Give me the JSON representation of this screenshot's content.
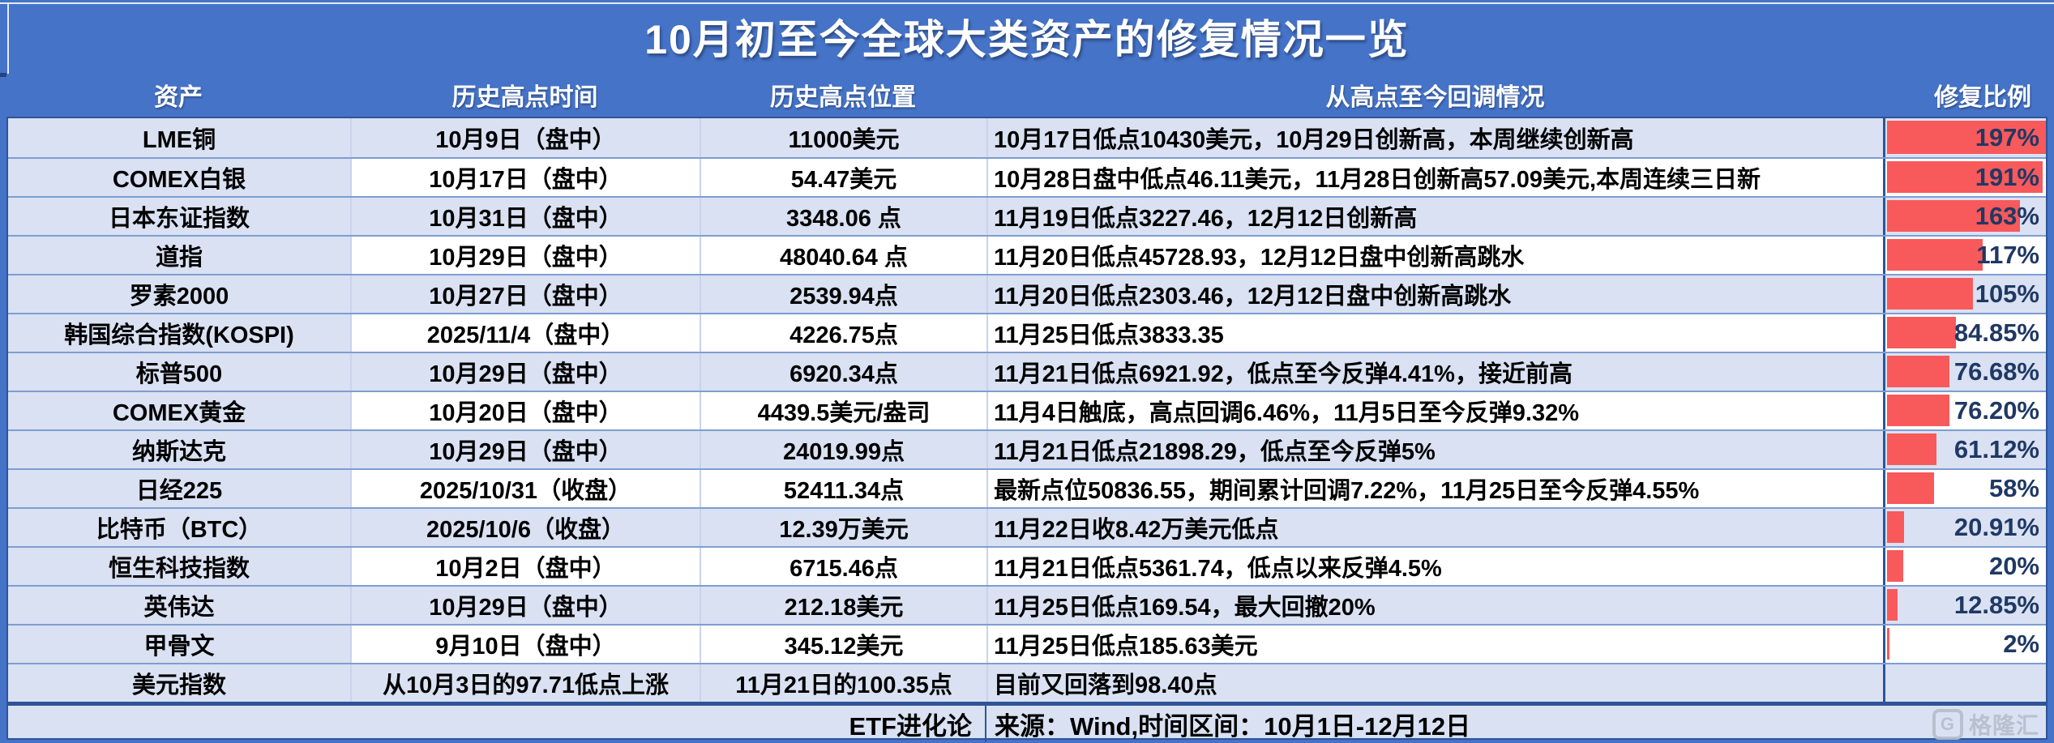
{
  "title": "10月初至今全球大类资产的修复情况一览",
  "table": {
    "headers": [
      "资产",
      "历史高点时间",
      "历史高点位置",
      "从高点至今回调情况",
      "修复比例"
    ],
    "recovery_bar_max": 197,
    "rows": [
      {
        "asset": "LME铜",
        "high_time": "10月9日（盘中）",
        "high_value": "11000美元",
        "pullback": "10月17日低点10430美元，10月29日创新高，本周继续创新高",
        "recovery_label": "197%",
        "recovery_pct": 197
      },
      {
        "asset": "COMEX白银",
        "high_time": "10月17日（盘中）",
        "high_value": "54.47美元",
        "pullback": "10月28日盘中低点46.11美元，11月28日创新高57.09美元,本周连续三日新",
        "recovery_label": "191%",
        "recovery_pct": 191
      },
      {
        "asset": "日本东证指数",
        "high_time": "10月31日（盘中）",
        "high_value": "3348.06 点",
        "pullback": "11月19日低点3227.46，12月12日创新高",
        "recovery_label": "163%",
        "recovery_pct": 163
      },
      {
        "asset": "道指",
        "high_time": "10月29日（盘中）",
        "high_value": "48040.64 点",
        "pullback": "11月20日低点45728.93，12月12日盘中创新高跳水",
        "recovery_label": "117%",
        "recovery_pct": 117
      },
      {
        "asset": "罗素2000",
        "high_time": "10月27日（盘中）",
        "high_value": "2539.94点",
        "pullback": "11月20日低点2303.46，12月12日盘中创新高跳水",
        "recovery_label": "105%",
        "recovery_pct": 105
      },
      {
        "asset": "韩国综合指数(KOSPI)",
        "high_time": "2025/11/4（盘中）",
        "high_value": "4226.75点",
        "pullback": "11月25日低点3833.35",
        "recovery_label": "84.85%",
        "recovery_pct": 84.85
      },
      {
        "asset": "标普500",
        "high_time": "10月29日（盘中）",
        "high_value": "6920.34点",
        "pullback": "11月21日低点6921.92，低点至今反弹4.41%，接近前高",
        "recovery_label": "76.68%",
        "recovery_pct": 76.68
      },
      {
        "asset": "COMEX黄金",
        "high_time": "10月20日（盘中）",
        "high_value": "4439.5美元/盎司",
        "pullback": "11月4日触底，高点回调6.46%，11月5日至今反弹9.32%",
        "recovery_label": "76.20%",
        "recovery_pct": 76.2
      },
      {
        "asset": "纳斯达克",
        "high_time": "10月29日（盘中）",
        "high_value": "24019.99点",
        "pullback": "11月21日低点21898.29，低点至今反弹5%",
        "recovery_label": "61.12%",
        "recovery_pct": 61.12
      },
      {
        "asset": "日经225",
        "high_time": "2025/10/31（收盘）",
        "high_value": "52411.34点",
        "pullback": "最新点位50836.55，期间累计回调7.22%，11月25日至今反弹4.55%",
        "recovery_label": "58%",
        "recovery_pct": 58
      },
      {
        "asset": "比特币（BTC）",
        "high_time": "2025/10/6（收盘）",
        "high_value": "12.39万美元",
        "pullback": "11月22日收8.42万美元低点",
        "recovery_label": "20.91%",
        "recovery_pct": 20.91
      },
      {
        "asset": "恒生科技指数",
        "high_time": "10月2日（盘中）",
        "high_value": "6715.46点",
        "pullback": "11月21日低点5361.74，低点以来反弹4.5%",
        "recovery_label": "20%",
        "recovery_pct": 20
      },
      {
        "asset": "英伟达",
        "high_time": "10月29日（盘中）",
        "high_value": "212.18美元",
        "pullback": "11月25日低点169.54，最大回撤20%",
        "recovery_label": "12.85%",
        "recovery_pct": 12.85
      },
      {
        "asset": "甲骨文",
        "high_time": "9月10日（盘中）",
        "high_value": "345.12美元",
        "pullback": "11月25日低点185.63美元",
        "recovery_label": "2%",
        "recovery_pct": 2
      },
      {
        "asset": "美元指数",
        "high_time": "从10月3日的97.71低点上涨",
        "high_value": "11月21日的100.35点",
        "pullback": "目前又回落到98.40点",
        "recovery_label": "",
        "recovery_pct": null
      }
    ]
  },
  "footer": {
    "brand": "ETF进化论",
    "source": "来源：Wind,时间区间：10月1日-12月12日",
    "watermark": "格隆汇",
    "watermark_icon": "G"
  },
  "colors": {
    "page_blue": "#4573C8",
    "row_band": "#D9E1F2",
    "row_white": "#FFFFFF",
    "bar_red": "#F8595B",
    "ratio_navy": "#1F3864",
    "border_dark": "#2F5597",
    "border_row": "#7F9DD2"
  }
}
